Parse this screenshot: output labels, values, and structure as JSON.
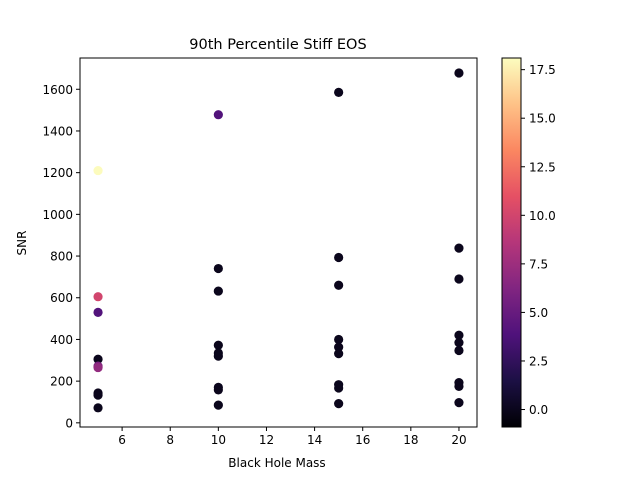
{
  "chart_data": {
    "type": "scatter",
    "title": "90th Percentile Stiff EOS",
    "xlabel": "Black Hole Mass",
    "ylabel": "SNR",
    "xlim": [
      4.25,
      20.75
    ],
    "ylim": [
      -20,
      1750
    ],
    "xticks": [
      6,
      8,
      10,
      12,
      14,
      16,
      18,
      20
    ],
    "yticks": [
      0,
      200,
      400,
      600,
      800,
      1000,
      1200,
      1400,
      1600
    ],
    "colorbar": {
      "cmap": "magma",
      "range": [
        -0.9,
        18.1
      ],
      "ticks": [
        "0.0",
        "2.5",
        "5.0",
        "7.5",
        "10.0",
        "12.5",
        "15.0",
        "17.5"
      ],
      "tick_values": [
        0,
        2.5,
        5,
        7.5,
        10,
        12.5,
        15,
        17.5
      ]
    },
    "grid": false,
    "points": [
      {
        "x": 5,
        "y": 1210,
        "c": 18
      },
      {
        "x": 5,
        "y": 605,
        "c": 10
      },
      {
        "x": 5,
        "y": 530,
        "c": 4
      },
      {
        "x": 5,
        "y": 305,
        "c": 0
      },
      {
        "x": 5,
        "y": 272,
        "c": 6
      },
      {
        "x": 5,
        "y": 265,
        "c": 7
      },
      {
        "x": 5,
        "y": 143,
        "c": 0
      },
      {
        "x": 5,
        "y": 133,
        "c": 0
      },
      {
        "x": 5,
        "y": 72,
        "c": 0
      },
      {
        "x": 10,
        "y": 1478,
        "c": 4
      },
      {
        "x": 10,
        "y": 740,
        "c": 0
      },
      {
        "x": 10,
        "y": 632,
        "c": 0
      },
      {
        "x": 10,
        "y": 372,
        "c": 0
      },
      {
        "x": 10,
        "y": 335,
        "c": 0
      },
      {
        "x": 10,
        "y": 320,
        "c": 0
      },
      {
        "x": 10,
        "y": 170,
        "c": 0
      },
      {
        "x": 10,
        "y": 158,
        "c": 0
      },
      {
        "x": 10,
        "y": 85,
        "c": 0
      },
      {
        "x": 15,
        "y": 1585,
        "c": 0
      },
      {
        "x": 15,
        "y": 793,
        "c": 0
      },
      {
        "x": 15,
        "y": 660,
        "c": 0
      },
      {
        "x": 15,
        "y": 400,
        "c": 0
      },
      {
        "x": 15,
        "y": 363,
        "c": 0
      },
      {
        "x": 15,
        "y": 332,
        "c": 0
      },
      {
        "x": 15,
        "y": 183,
        "c": 0
      },
      {
        "x": 15,
        "y": 167,
        "c": 0
      },
      {
        "x": 15,
        "y": 92,
        "c": 0
      },
      {
        "x": 20,
        "y": 1678,
        "c": 0
      },
      {
        "x": 20,
        "y": 838,
        "c": 0
      },
      {
        "x": 20,
        "y": 690,
        "c": 0
      },
      {
        "x": 20,
        "y": 420,
        "c": 0
      },
      {
        "x": 20,
        "y": 385,
        "c": 0
      },
      {
        "x": 20,
        "y": 347,
        "c": 0
      },
      {
        "x": 20,
        "y": 193,
        "c": 0
      },
      {
        "x": 20,
        "y": 175,
        "c": 0
      },
      {
        "x": 20,
        "y": 97,
        "c": 0
      }
    ]
  }
}
